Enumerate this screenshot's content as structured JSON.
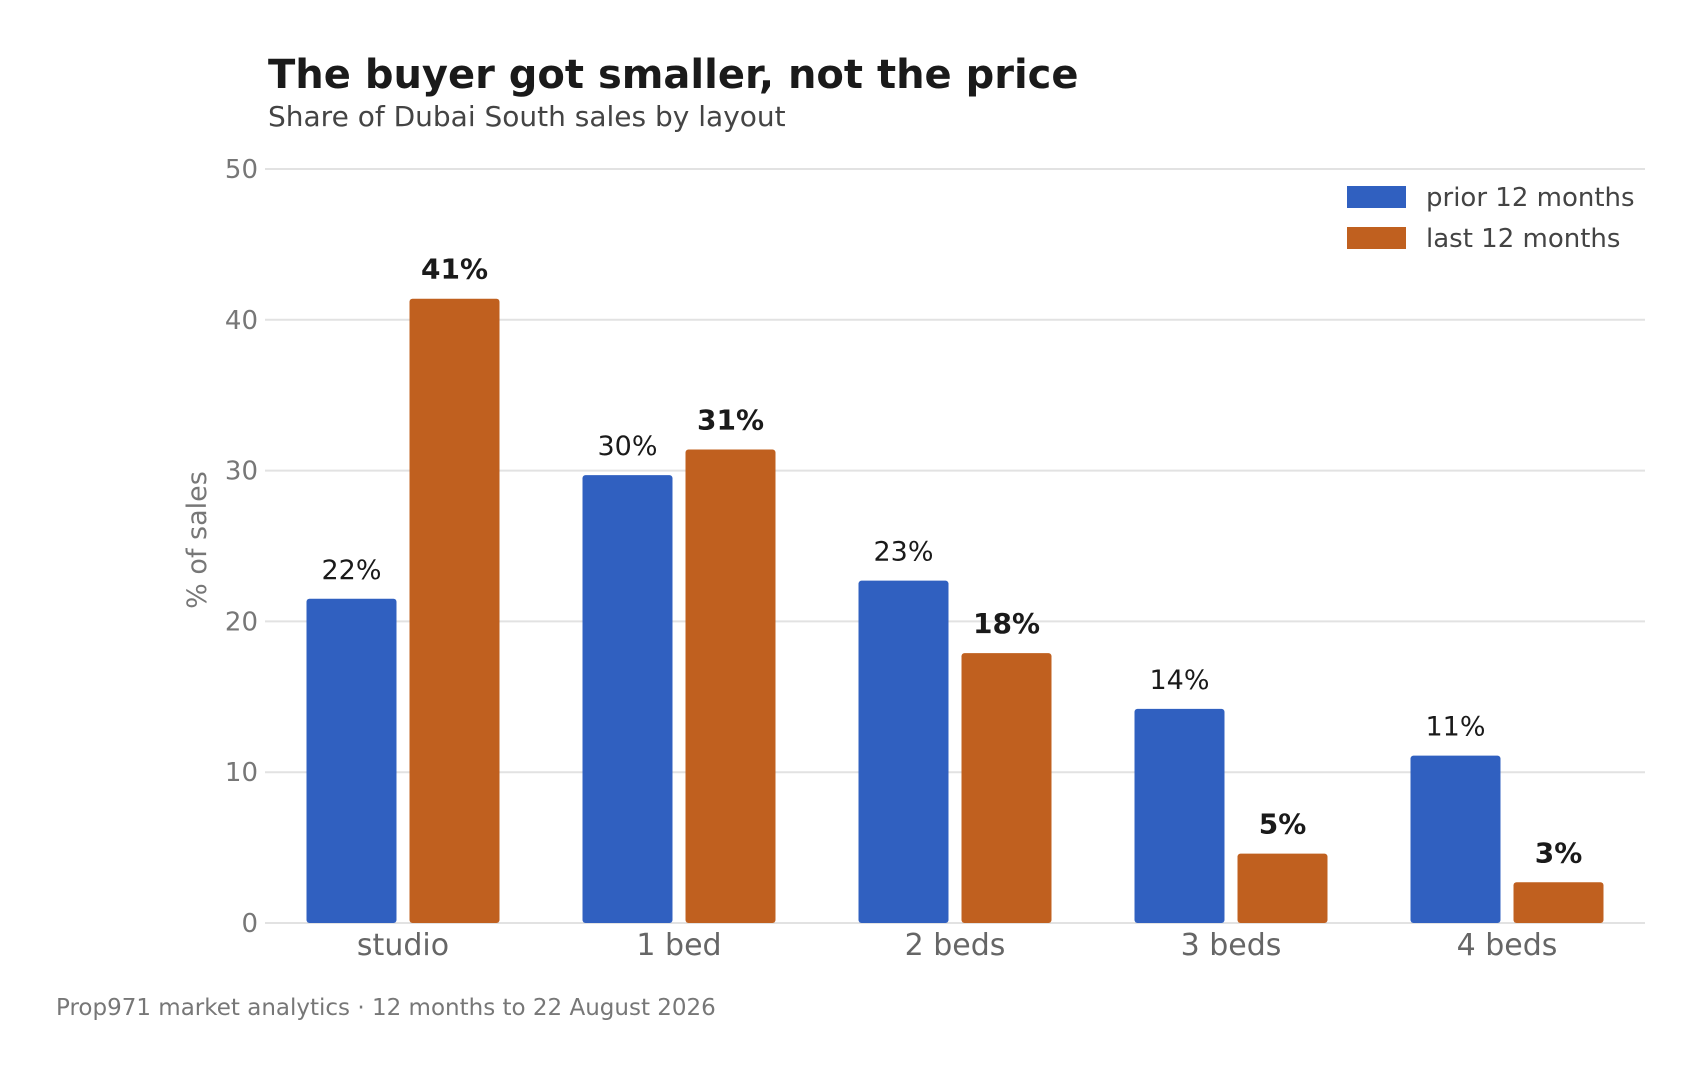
{
  "chart_data": {
    "type": "bar",
    "title": "The buyer got smaller, not the price",
    "subtitle": "Share of Dubai South sales by layout",
    "ylabel": "% of sales",
    "xlabel": "",
    "ylim": [
      0,
      50
    ],
    "yticks": [
      0,
      10,
      20,
      30,
      40,
      50
    ],
    "grid": true,
    "legend_position": "top-right",
    "categories": [
      "studio",
      "1 bed",
      "2 beds",
      "3 beds",
      "4 beds"
    ],
    "series": [
      {
        "name": "prior 12 months",
        "color": "#3060c0",
        "values": [
          21.5,
          29.7,
          22.7,
          14.2,
          11.1
        ],
        "labels": [
          "22%",
          "30%",
          "23%",
          "14%",
          "11%"
        ]
      },
      {
        "name": "last 12 months",
        "color": "#c0601f",
        "values": [
          41.4,
          31.4,
          17.9,
          4.6,
          2.7
        ],
        "labels": [
          "41%",
          "31%",
          "18%",
          "5%",
          "3%"
        ]
      }
    ],
    "source": "Prop971 market analytics · 12 months to 22 August 2026"
  }
}
